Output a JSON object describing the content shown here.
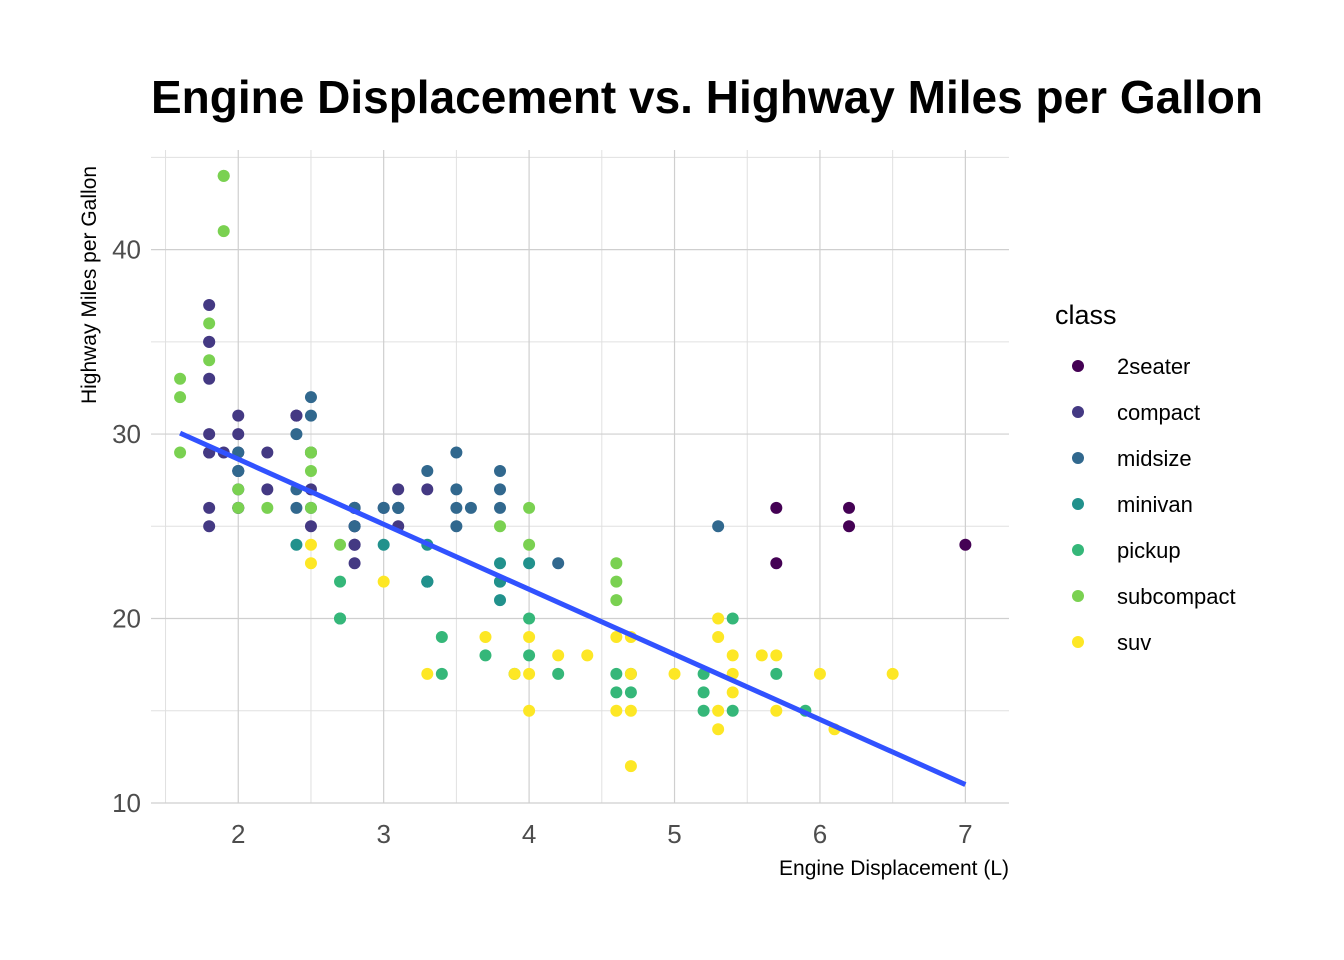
{
  "chart_data": {
    "type": "scatter",
    "title": "Engine Displacement vs. Highway Miles per Gallon",
    "xlabel": "Engine Displacement (L)",
    "ylabel": "Highway Miles per Gallon",
    "xlim": [
      1.4,
      7.3
    ],
    "ylim": [
      10,
      45.4
    ],
    "xticks": [
      2,
      3,
      4,
      5,
      6,
      7
    ],
    "xtick_labels": [
      "2",
      "3",
      "4",
      "5",
      "6",
      "7"
    ],
    "yticks": [
      10,
      20,
      30,
      40
    ],
    "ytick_labels": [
      "10",
      "20",
      "30",
      "40"
    ],
    "grid": true,
    "legend": {
      "title": "class",
      "position": "right"
    },
    "series": [
      {
        "name": "2seater",
        "color": "#440154",
        "points": [
          [
            5.7,
            26
          ],
          [
            5.7,
            23
          ],
          [
            6.2,
            26
          ],
          [
            6.2,
            25
          ],
          [
            7.0,
            24
          ]
        ]
      },
      {
        "name": "compact",
        "color": "#443983",
        "points": [
          [
            1.8,
            29
          ],
          [
            1.8,
            29
          ],
          [
            2.0,
            31
          ],
          [
            2.0,
            30
          ],
          [
            2.8,
            26
          ],
          [
            2.8,
            26
          ],
          [
            3.1,
            27
          ],
          [
            1.8,
            26
          ],
          [
            1.8,
            25
          ],
          [
            2.0,
            28
          ],
          [
            2.0,
            27
          ],
          [
            2.8,
            25
          ],
          [
            2.8,
            25
          ],
          [
            3.1,
            25
          ],
          [
            1.8,
            30
          ],
          [
            1.8,
            33
          ],
          [
            1.8,
            35
          ],
          [
            1.8,
            37
          ],
          [
            1.8,
            35
          ],
          [
            1.9,
            29
          ],
          [
            2.0,
            29
          ],
          [
            2.2,
            29
          ],
          [
            2.2,
            27
          ],
          [
            2.4,
            31
          ],
          [
            2.4,
            31
          ],
          [
            3.0,
            26
          ],
          [
            3.3,
            27
          ],
          [
            2.0,
            26
          ],
          [
            2.5,
            29
          ],
          [
            2.5,
            29
          ],
          [
            2.8,
            23
          ],
          [
            2.8,
            24
          ],
          [
            2.0,
            26
          ],
          [
            2.5,
            27
          ],
          [
            2.5,
            25
          ],
          [
            2.8,
            24
          ]
        ]
      },
      {
        "name": "midsize",
        "color": "#31688e",
        "points": [
          [
            2.8,
            26
          ],
          [
            3.1,
            26
          ],
          [
            2.4,
            30
          ],
          [
            3.3,
            28
          ],
          [
            3.5,
            29
          ],
          [
            3.5,
            27
          ],
          [
            3.8,
            28
          ],
          [
            3.8,
            26
          ],
          [
            2.4,
            27
          ],
          [
            2.4,
            26
          ],
          [
            2.5,
            31
          ],
          [
            2.5,
            32
          ],
          [
            3.5,
            26
          ],
          [
            3.5,
            25
          ],
          [
            3.0,
            26
          ],
          [
            3.3,
            22
          ],
          [
            3.6,
            26
          ],
          [
            2.0,
            28
          ],
          [
            2.0,
            29
          ],
          [
            3.1,
            26
          ],
          [
            3.8,
            27
          ],
          [
            4.2,
            23
          ],
          [
            5.3,
            25
          ],
          [
            2.0,
            28
          ],
          [
            2.8,
            25
          ],
          [
            2.5,
            26
          ],
          [
            3.1,
            26
          ]
        ]
      },
      {
        "name": "minivan",
        "color": "#21918c",
        "points": [
          [
            2.4,
            24
          ],
          [
            3.0,
            24
          ],
          [
            3.3,
            22
          ],
          [
            3.3,
            22
          ],
          [
            3.3,
            24
          ],
          [
            3.8,
            21
          ],
          [
            3.8,
            22
          ],
          [
            3.8,
            23
          ],
          [
            4.0,
            23
          ],
          [
            2.7,
            20
          ],
          [
            3.8,
            22
          ]
        ]
      },
      {
        "name": "pickup",
        "color": "#35b779",
        "points": [
          [
            2.7,
            22
          ],
          [
            2.7,
            20
          ],
          [
            3.4,
            19
          ],
          [
            3.4,
            17
          ],
          [
            3.7,
            18
          ],
          [
            3.9,
            17
          ],
          [
            4.0,
            20
          ],
          [
            4.0,
            18
          ],
          [
            4.2,
            17
          ],
          [
            4.6,
            17
          ],
          [
            4.6,
            16
          ],
          [
            4.7,
            16
          ],
          [
            4.7,
            17
          ],
          [
            5.2,
            15
          ],
          [
            5.2,
            16
          ],
          [
            5.4,
            15
          ],
          [
            5.4,
            20
          ],
          [
            5.7,
            17
          ],
          [
            5.9,
            15
          ],
          [
            5.2,
            17
          ]
        ]
      },
      {
        "name": "subcompact",
        "color": "#7ad151",
        "points": [
          [
            1.6,
            33
          ],
          [
            1.6,
            32
          ],
          [
            1.6,
            29
          ],
          [
            1.8,
            34
          ],
          [
            1.8,
            36
          ],
          [
            1.9,
            44
          ],
          [
            1.9,
            44
          ],
          [
            1.9,
            41
          ],
          [
            2.0,
            26
          ],
          [
            2.0,
            27
          ],
          [
            2.2,
            26
          ],
          [
            2.5,
            26
          ],
          [
            2.5,
            28
          ],
          [
            2.5,
            29
          ],
          [
            2.7,
            24
          ],
          [
            3.8,
            25
          ],
          [
            4.0,
            24
          ],
          [
            4.0,
            26
          ],
          [
            4.6,
            23
          ],
          [
            4.6,
            22
          ],
          [
            4.6,
            21
          ],
          [
            2.5,
            29
          ]
        ]
      },
      {
        "name": "suv",
        "color": "#fde725",
        "points": [
          [
            2.5,
            24
          ],
          [
            2.5,
            23
          ],
          [
            3.0,
            22
          ],
          [
            3.3,
            17
          ],
          [
            3.7,
            19
          ],
          [
            3.9,
            17
          ],
          [
            4.0,
            19
          ],
          [
            4.0,
            17
          ],
          [
            4.0,
            15
          ],
          [
            4.2,
            18
          ],
          [
            4.4,
            18
          ],
          [
            4.6,
            19
          ],
          [
            4.6,
            15
          ],
          [
            4.7,
            19
          ],
          [
            4.7,
            17
          ],
          [
            4.7,
            15
          ],
          [
            4.7,
            12
          ],
          [
            5.0,
            17
          ],
          [
            5.3,
            20
          ],
          [
            5.3,
            19
          ],
          [
            5.3,
            15
          ],
          [
            5.3,
            14
          ],
          [
            5.4,
            18
          ],
          [
            5.4,
            17
          ],
          [
            5.4,
            16
          ],
          [
            5.6,
            18
          ],
          [
            5.7,
            18
          ],
          [
            5.7,
            15
          ],
          [
            6.0,
            17
          ],
          [
            6.1,
            14
          ],
          [
            6.5,
            17
          ]
        ]
      }
    ],
    "trend_line": {
      "color": "#3152ff",
      "x": [
        1.6,
        7.0
      ],
      "y": [
        30.05,
        11.0
      ]
    }
  }
}
